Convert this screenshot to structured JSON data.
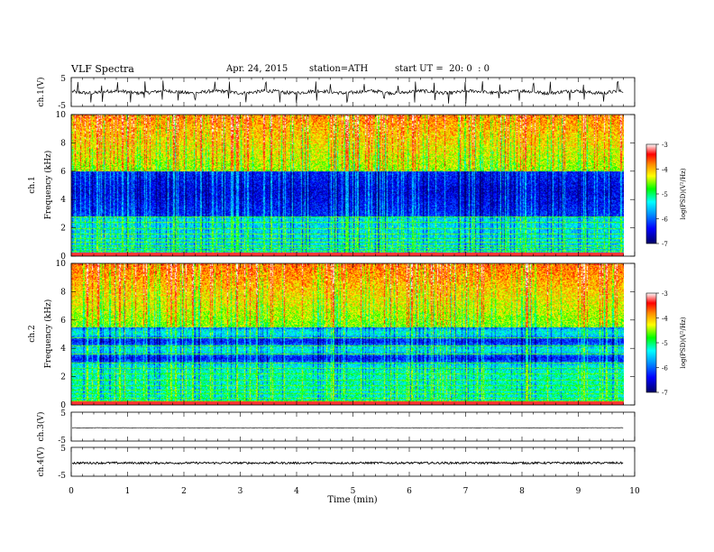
{
  "header": {
    "title": "VLF Spectra",
    "date": "Apr. 24, 2015",
    "station": "station=ATH",
    "start": "start UT =  20: 0  : 0"
  },
  "chart_data": [
    {
      "type": "line",
      "panel": "ch1-waveform",
      "ylabel": "ch.1(V)",
      "ylim": [
        -5,
        5
      ],
      "yticks": [
        "5",
        "-5"
      ],
      "xlim": [
        0,
        10
      ],
      "data_end": 9.8,
      "baseline": 0.0,
      "noise_amplitude": 0.6,
      "spikes": [
        0.12,
        0.35,
        0.55,
        0.82,
        1.05,
        1.3,
        1.62,
        1.9,
        2.2,
        2.55,
        2.8,
        3.1,
        3.45,
        3.7,
        4.0,
        4.35,
        4.6,
        4.9,
        5.2,
        5.55,
        5.8,
        6.1,
        6.45,
        6.7,
        7.0,
        7.3,
        7.6,
        7.95,
        8.2,
        8.5,
        8.85,
        9.1,
        9.45,
        9.7
      ]
    },
    {
      "type": "heatmap",
      "panel": "ch1-spectrogram",
      "title": "ch.1",
      "ylabel": "Frequency  (kHz)",
      "ylim": [
        0,
        10
      ],
      "yticks": [
        "0",
        "2",
        "4",
        "6",
        "8",
        "10"
      ],
      "xlim": [
        0,
        10
      ],
      "data_end": 9.8,
      "colorbar": {
        "label": "log(PSD)(V²/Hz)",
        "range": [
          -7,
          -3
        ],
        "ticks": [
          "-3",
          "-4",
          "-5",
          "-6",
          "-7"
        ]
      },
      "lines_khz": [
        0.25,
        0.4,
        0.55,
        0.75,
        1.0,
        1.3,
        1.6,
        2.0,
        2.4,
        2.8
      ]
    },
    {
      "type": "heatmap",
      "panel": "ch2-spectrogram",
      "title": "ch.2",
      "ylabel": "Frequency  (kHz)",
      "ylim": [
        0,
        10
      ],
      "yticks": [
        "0",
        "2",
        "4",
        "6",
        "8",
        "10"
      ],
      "xlim": [
        0,
        10
      ],
      "data_end": 9.8,
      "colorbar": {
        "label": "log(PSD)(V²/Hz)",
        "range": [
          -7,
          -3
        ],
        "ticks": [
          "-3",
          "-4",
          "-5",
          "-6",
          "-7"
        ]
      },
      "lines_khz": [
        0.3,
        0.5,
        0.8,
        1.1,
        1.4,
        1.8,
        2.2,
        2.6,
        3.0,
        3.6,
        4.2,
        4.8
      ]
    },
    {
      "type": "line",
      "panel": "ch3-waveform",
      "ylabel": "ch.3(V)",
      "ylim": [
        -5,
        5
      ],
      "yticks": [
        "5",
        "-5"
      ],
      "xlim": [
        0,
        10
      ],
      "data_end": 9.8,
      "baseline": -0.4,
      "noise_amplitude": 0.05,
      "spikes": []
    },
    {
      "type": "line",
      "panel": "ch4-waveform",
      "ylabel": "ch.4(V)",
      "ylim": [
        -5,
        5
      ],
      "yticks": [
        "5",
        "-5"
      ],
      "xlim": [
        0,
        10
      ],
      "data_end": 9.8,
      "baseline": -0.4,
      "noise_amplitude": 0.35,
      "spikes": []
    }
  ],
  "xaxis": {
    "xlabel": "Time  (min)",
    "ticks": [
      "0",
      "1",
      "2",
      "3",
      "4",
      "5",
      "6",
      "7",
      "8",
      "9",
      "10"
    ]
  }
}
